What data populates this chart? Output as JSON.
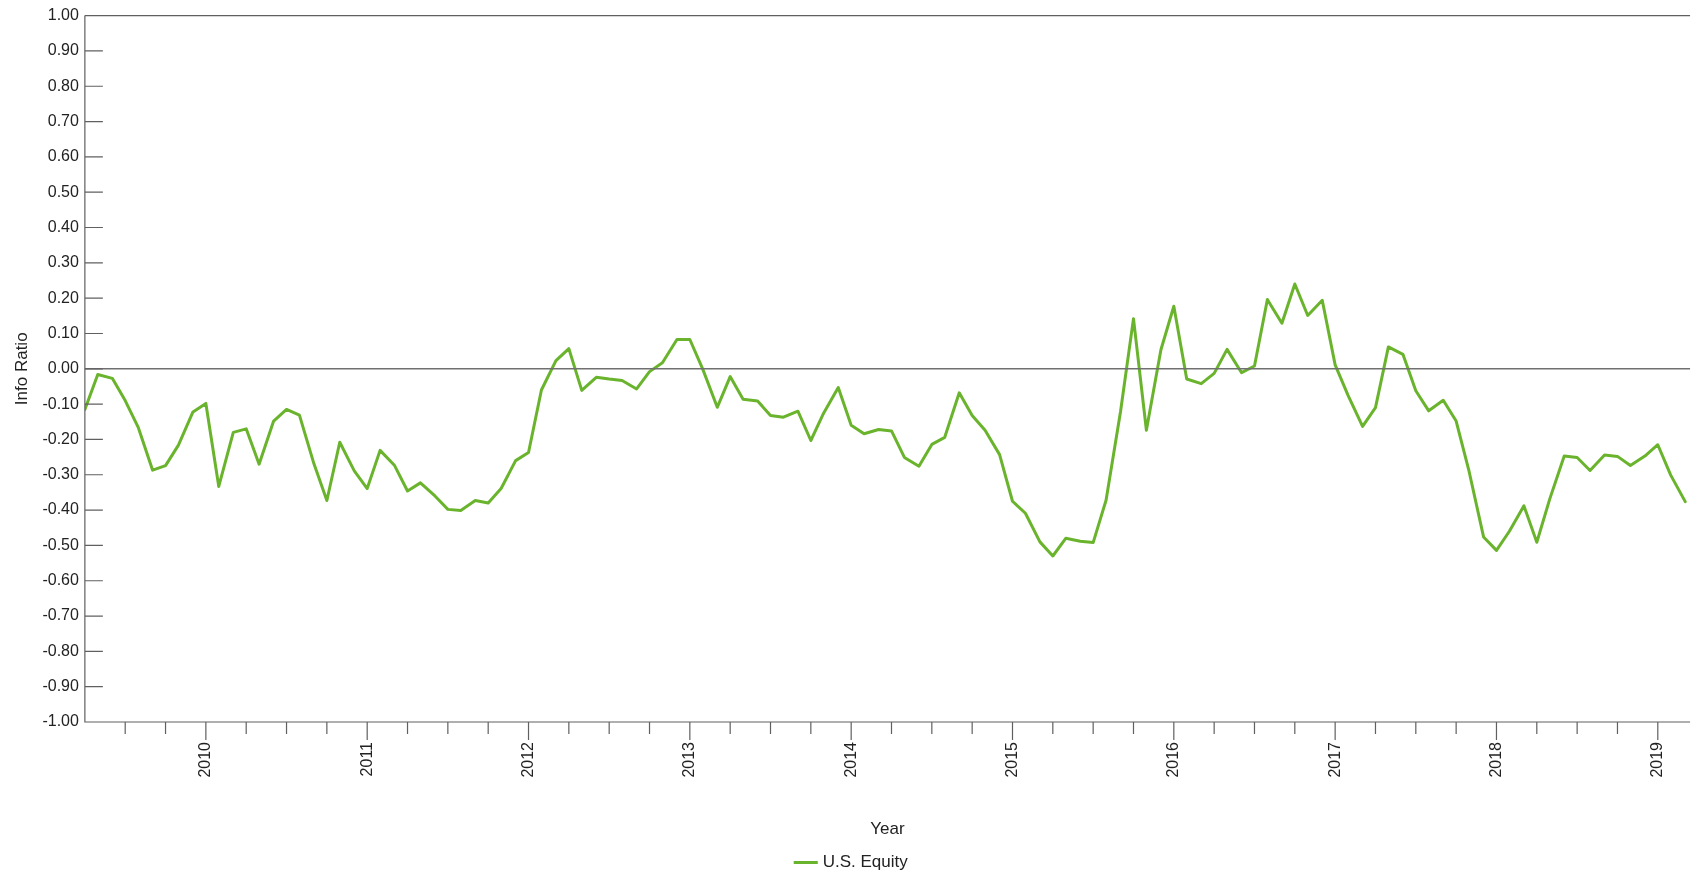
{
  "chart_data": {
    "type": "line",
    "xlabel": "Year",
    "ylabel": "Info Ratio",
    "legend": "bottom",
    "x": [
      2009.25,
      2009.33,
      2009.42,
      2009.5,
      2009.58,
      2009.67,
      2009.75,
      2009.83,
      2009.92,
      2010,
      2010.08,
      2010.17,
      2010.25,
      2010.33,
      2010.42,
      2010.5,
      2010.58,
      2010.67,
      2010.75,
      2010.83,
      2010.92,
      2011,
      2011.08,
      2011.17,
      2011.25,
      2011.33,
      2011.42,
      2011.5,
      2011.58,
      2011.67,
      2011.75,
      2011.83,
      2011.92,
      2012,
      2012.08,
      2012.17,
      2012.25,
      2012.33,
      2012.42,
      2012.5,
      2012.58,
      2012.67,
      2012.75,
      2012.83,
      2012.92,
      2013,
      2013.08,
      2013.17,
      2013.25,
      2013.33,
      2013.42,
      2013.5,
      2013.58,
      2013.67,
      2013.75,
      2013.83,
      2013.92,
      2014,
      2014.08,
      2014.17,
      2014.25,
      2014.33,
      2014.42,
      2014.5,
      2014.58,
      2014.67,
      2014.75,
      2014.83,
      2014.92,
      2015,
      2015.08,
      2015.17,
      2015.25,
      2015.33,
      2015.42,
      2015.5,
      2015.58,
      2015.67,
      2015.75,
      2015.83,
      2015.92,
      2016,
      2016.08,
      2016.17,
      2016.25,
      2016.33,
      2016.42,
      2016.5,
      2016.58,
      2016.67,
      2016.75,
      2016.83,
      2016.92,
      2017,
      2017.08,
      2017.17,
      2017.25,
      2017.33,
      2017.42,
      2017.5,
      2017.58,
      2017.67,
      2017.75,
      2017.83,
      2017.92,
      2018,
      2018.08,
      2018.17,
      2018.25,
      2018.33,
      2018.42,
      2018.5,
      2018.58,
      2018.67,
      2018.75,
      2018.83,
      2018.92,
      2019,
      2019.08,
      2019.17
    ],
    "series": [
      {
        "name": "U.S. Equity",
        "color": "#6ab42d",
        "values": [
          -0.115,
          -0.016,
          -0.027,
          -0.09,
          -0.165,
          -0.287,
          -0.274,
          -0.216,
          -0.122,
          -0.098,
          -0.333,
          -0.18,
          -0.17,
          -0.27,
          -0.148,
          -0.115,
          -0.131,
          -0.269,
          -0.373,
          -0.208,
          -0.289,
          -0.339,
          -0.231,
          -0.274,
          -0.346,
          -0.323,
          -0.36,
          -0.398,
          -0.401,
          -0.373,
          -0.38,
          -0.339,
          -0.26,
          -0.237,
          -0.06,
          0.023,
          0.057,
          -0.061,
          -0.024,
          -0.029,
          -0.033,
          -0.057,
          -0.008,
          0.017,
          0.083,
          0.083,
          -0.001,
          -0.109,
          -0.022,
          -0.086,
          -0.091,
          -0.132,
          -0.137,
          -0.12,
          -0.203,
          -0.125,
          -0.053,
          -0.16,
          -0.184,
          -0.172,
          -0.176,
          -0.251,
          -0.276,
          -0.214,
          -0.194,
          -0.068,
          -0.132,
          -0.174,
          -0.243,
          -0.375,
          -0.409,
          -0.49,
          -0.53,
          -0.48,
          -0.488,
          -0.492,
          -0.372,
          -0.12,
          0.142,
          -0.174,
          0.054,
          0.177,
          -0.029,
          -0.042,
          -0.013,
          0.055,
          -0.011,
          0.008,
          0.196,
          0.129,
          0.24,
          0.151,
          0.194,
          0.011,
          -0.075,
          -0.163,
          -0.11,
          0.062,
          0.041,
          -0.062,
          -0.119,
          -0.089,
          -0.148,
          -0.29,
          -0.476,
          -0.514,
          -0.46,
          -0.388,
          -0.491,
          -0.369,
          -0.247,
          -0.251,
          -0.288,
          -0.244,
          -0.248,
          -0.274,
          -0.247,
          -0.215,
          -0.301,
          -0.376
        ]
      }
    ],
    "xlim": [
      2009.25,
      2019.2
    ],
    "xticks": [
      {
        "value": 2009.5,
        "label": null
      },
      {
        "value": 2009.75,
        "label": null
      },
      2010,
      {
        "value": 2010.25,
        "label": null
      },
      {
        "value": 2010.5,
        "label": null
      },
      {
        "value": 2010.75,
        "label": null
      },
      2011,
      {
        "value": 2011.25,
        "label": null
      },
      {
        "value": 2011.5,
        "label": null
      },
      {
        "value": 2011.75,
        "label": null
      },
      2012,
      {
        "value": 2012.25,
        "label": null
      },
      {
        "value": 2012.5,
        "label": null
      },
      {
        "value": 2012.75,
        "label": null
      },
      2013,
      {
        "value": 2013.25,
        "label": null
      },
      {
        "value": 2013.5,
        "label": null
      },
      {
        "value": 2013.75,
        "label": null
      },
      2014,
      {
        "value": 2014.25,
        "label": null
      },
      {
        "value": 2014.5,
        "label": null
      },
      {
        "value": 2014.75,
        "label": null
      },
      2015,
      {
        "value": 2015.25,
        "label": null
      },
      {
        "value": 2015.5,
        "label": null
      },
      {
        "value": 2015.75,
        "label": null
      },
      2016,
      {
        "value": 2016.25,
        "label": null
      },
      {
        "value": 2016.5,
        "label": null
      },
      {
        "value": 2016.75,
        "label": null
      },
      2017,
      {
        "value": 2017.25,
        "label": null
      },
      {
        "value": 2017.5,
        "label": null
      },
      {
        "value": 2017.75,
        "label": null
      },
      2018,
      {
        "value": 2018.25,
        "label": null
      },
      {
        "value": 2018.5,
        "label": null
      },
      {
        "value": 2018.75,
        "label": null
      },
      2019
    ],
    "ylim": [
      -1,
      1
    ],
    "yticks": [
      {
        "value": -1,
        "label": "-1.00"
      },
      {
        "value": -0.9,
        "label": "-0.90"
      },
      {
        "value": -0.8,
        "label": "-0.80"
      },
      {
        "value": -0.7,
        "label": "-0.70"
      },
      {
        "value": -0.6,
        "label": "-0.60"
      },
      {
        "value": -0.5,
        "label": "-0.50"
      },
      {
        "value": -0.4,
        "label": "-0.40"
      },
      {
        "value": -0.3,
        "label": "-0.30"
      },
      {
        "value": -0.2,
        "label": "-0.20"
      },
      {
        "value": -0.1,
        "label": "-0.10"
      },
      {
        "value": 0,
        "label": "0.00"
      },
      {
        "value": 0.1,
        "label": "0.10"
      },
      {
        "value": 0.2,
        "label": "0.20"
      },
      {
        "value": 0.3,
        "label": "0.30"
      },
      {
        "value": 0.4,
        "label": "0.40"
      },
      {
        "value": 0.5,
        "label": "0.50"
      },
      {
        "value": 0.6,
        "label": "0.60"
      },
      {
        "value": 0.7,
        "label": "0.70"
      },
      {
        "value": 0.8,
        "label": "0.80"
      },
      {
        "value": 0.9,
        "label": "0.90"
      },
      {
        "value": 1,
        "label": "1.00"
      }
    ],
    "ref_lines": [
      {
        "axis": "y",
        "value": 0,
        "color": "#707070"
      }
    ]
  }
}
